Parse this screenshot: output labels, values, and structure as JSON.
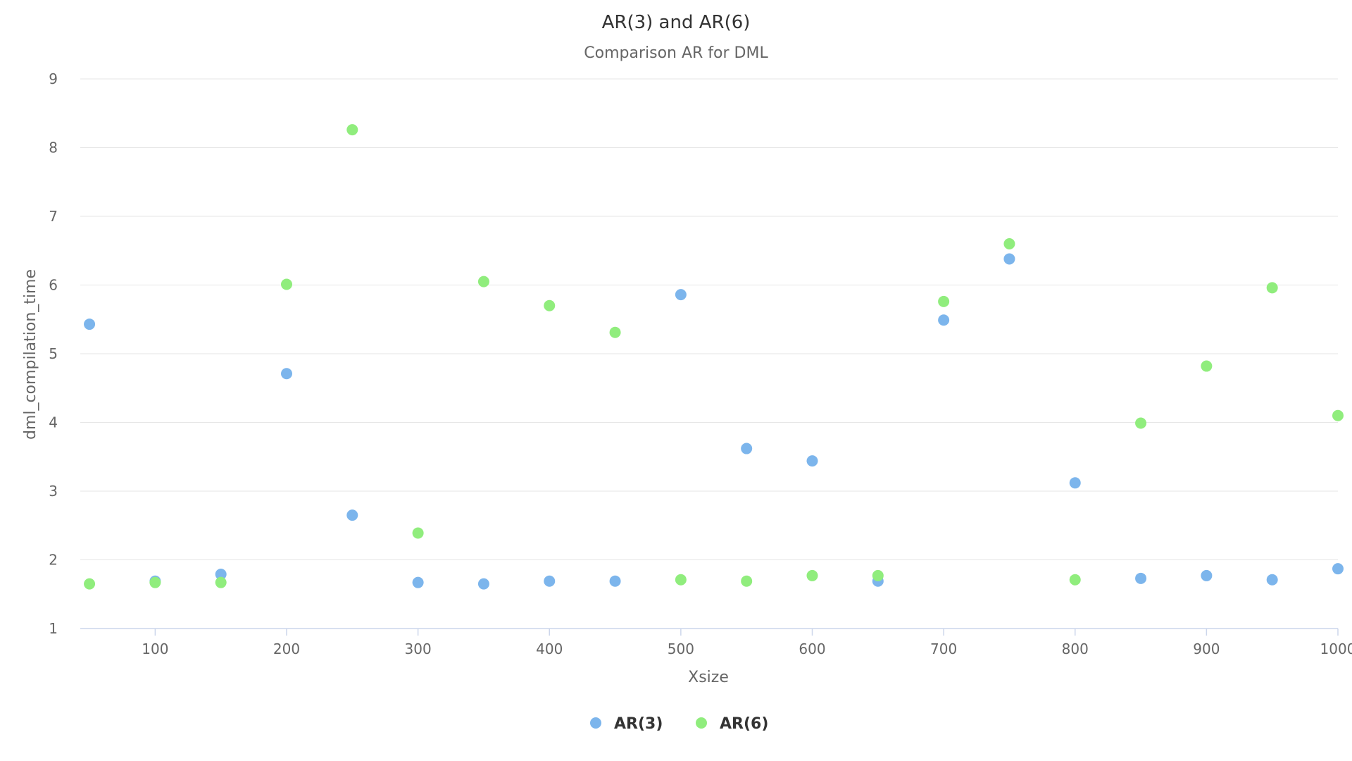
{
  "chart_data": {
    "type": "scatter",
    "title": "AR(3) and AR(6)",
    "subtitle": "Comparison AR for DML",
    "xlabel": "Xsize",
    "ylabel": "dml_compilation_time",
    "xlim": [
      43,
      1000
    ],
    "ylim": [
      1,
      9
    ],
    "xticks": [
      100,
      200,
      300,
      400,
      500,
      600,
      700,
      800,
      900,
      1000
    ],
    "yticks": [
      1,
      2,
      3,
      4,
      5,
      6,
      7,
      8,
      9
    ],
    "grid": "horizontal",
    "legend_position": "bottom-center",
    "series": [
      {
        "name": "AR(3)",
        "color": "#7cb5ec",
        "points": [
          [
            50,
            5.43
          ],
          [
            100,
            1.69
          ],
          [
            150,
            1.79
          ],
          [
            200,
            4.71
          ],
          [
            250,
            2.65
          ],
          [
            300,
            1.67
          ],
          [
            350,
            1.65
          ],
          [
            400,
            1.69
          ],
          [
            450,
            1.69
          ],
          [
            500,
            5.86
          ],
          [
            550,
            3.62
          ],
          [
            600,
            3.44
          ],
          [
            650,
            1.69
          ],
          [
            700,
            5.49
          ],
          [
            750,
            6.38
          ],
          [
            800,
            3.12
          ],
          [
            850,
            1.73
          ],
          [
            900,
            1.77
          ],
          [
            950,
            1.71
          ],
          [
            1000,
            1.87
          ]
        ]
      },
      {
        "name": "AR(6)",
        "color": "#90ed7d",
        "points": [
          [
            50,
            1.65
          ],
          [
            100,
            1.67
          ],
          [
            150,
            1.67
          ],
          [
            200,
            6.01
          ],
          [
            250,
            8.26
          ],
          [
            300,
            2.39
          ],
          [
            350,
            6.05
          ],
          [
            400,
            5.7
          ],
          [
            450,
            5.31
          ],
          [
            500,
            1.71
          ],
          [
            550,
            1.69
          ],
          [
            600,
            1.77
          ],
          [
            650,
            1.77
          ],
          [
            700,
            5.76
          ],
          [
            750,
            6.6
          ],
          [
            800,
            1.71
          ],
          [
            850,
            3.99
          ],
          [
            900,
            4.82
          ],
          [
            950,
            5.96
          ],
          [
            1000,
            4.1
          ]
        ]
      }
    ]
  }
}
